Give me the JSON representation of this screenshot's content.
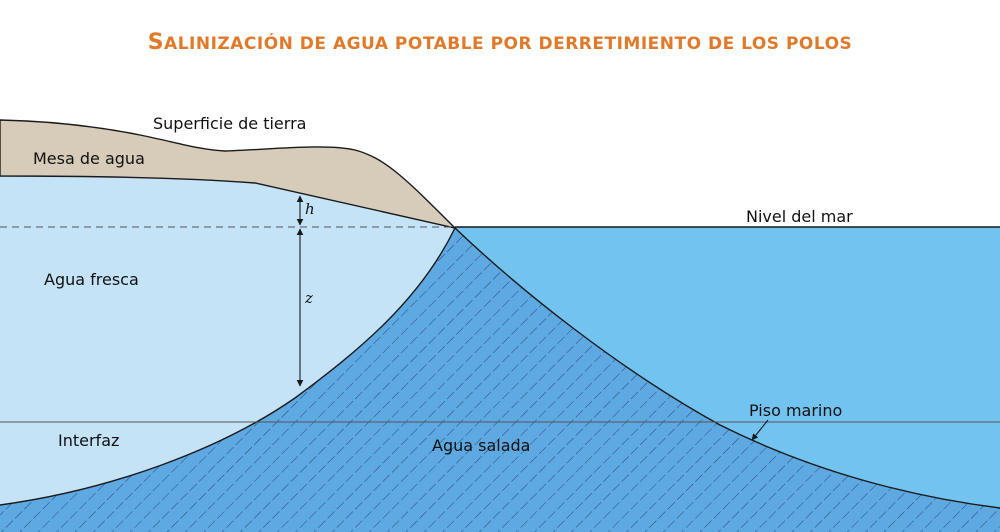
{
  "title": {
    "first_letter": "S",
    "rest": "alinización de agua potable por derretimiento de los polos"
  },
  "labels": {
    "land_surface": "Superficie de tierra",
    "water_table": "Mesa de agua",
    "fresh_water": "Agua fresca",
    "sea_level": "Nivel del mar",
    "interface": "Interfaz",
    "salt_water": "Agua salada",
    "sea_floor": "Piso marino",
    "h": "h",
    "z": "z"
  },
  "colors": {
    "title": "#e07a2a",
    "land": "#d7cbb9",
    "fresh_water": "#c4e3f7",
    "sea_water": "#72c3f0",
    "salt_zone": "#5fa9e2",
    "outline": "#1a1a1a"
  }
}
